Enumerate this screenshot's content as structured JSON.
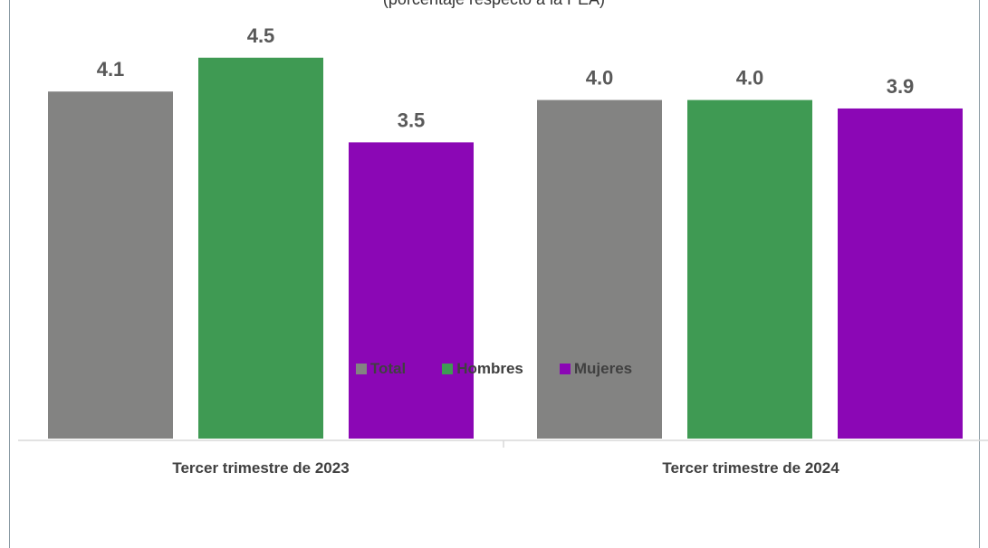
{
  "chart_data": {
    "type": "bar",
    "subtitle": "(porcentaje respecto a la PEA)",
    "categories": [
      "Tercer trimestre de 2023",
      "Tercer trimestre de 2024"
    ],
    "series": [
      {
        "name": "Total",
        "color": "#838382",
        "values": [
          4.1,
          4.0
        ],
        "labels": [
          "4.1",
          "4.0"
        ]
      },
      {
        "name": "Hombres",
        "color": "#3f9a53",
        "values": [
          4.5,
          4.0
        ],
        "labels": [
          "4.5",
          "4.0"
        ]
      },
      {
        "name": "Mujeres",
        "color": "#8b07b5",
        "values": [
          3.5,
          3.9
        ],
        "labels": [
          "3.5",
          "3.9"
        ]
      }
    ],
    "ylim": [
      0,
      5.6
    ],
    "grid": false,
    "legend_position": "bottom"
  }
}
